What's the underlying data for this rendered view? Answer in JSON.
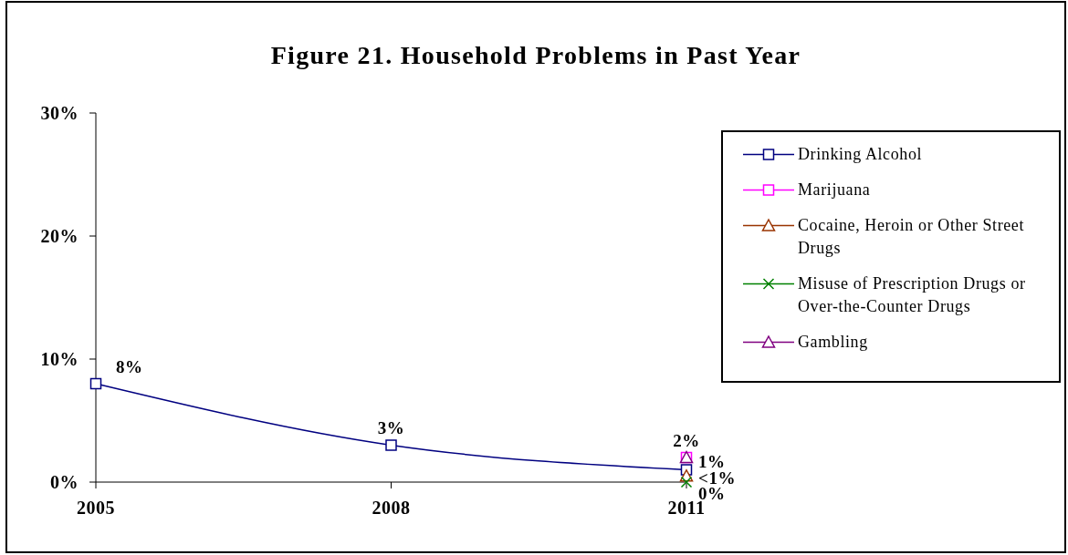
{
  "chart_data": {
    "type": "line",
    "title": "Figure 21. Household Problems in Past Year",
    "categories": [
      "2005",
      "2008",
      "2011"
    ],
    "ylim": [
      0,
      30
    ],
    "yticks": [
      {
        "value": 0,
        "label": "0%"
      },
      {
        "value": 10,
        "label": "10%"
      },
      {
        "value": 20,
        "label": "20%"
      },
      {
        "value": 30,
        "label": "30%"
      }
    ],
    "legend": "top right",
    "series": [
      {
        "name": "Drinking Alcohol",
        "color": "#000080",
        "marker": "square",
        "values": [
          8,
          3,
          1
        ],
        "value_labels": [
          "8%",
          "3%",
          "1%"
        ]
      },
      {
        "name": "Marijuana",
        "color": "#ff00ff",
        "marker": "square",
        "values": [
          null,
          null,
          2
        ],
        "value_labels": [
          null,
          null,
          "2%"
        ]
      },
      {
        "name": "Cocaine, Heroin or Other Street Drugs",
        "color": "#993300",
        "marker": "triangle",
        "values": [
          null,
          null,
          0.5
        ],
        "value_labels": [
          null,
          null,
          "<1%"
        ]
      },
      {
        "name": "Misuse of Prescription Drugs or Over-the-Counter Drugs",
        "color": "#008000",
        "marker": "cross",
        "values": [
          null,
          null,
          0
        ],
        "value_labels": [
          null,
          null,
          "0%"
        ]
      },
      {
        "name": "Gambling",
        "color": "#800080",
        "marker": "triangle",
        "values": [
          null,
          null,
          2
        ]
      }
    ]
  }
}
